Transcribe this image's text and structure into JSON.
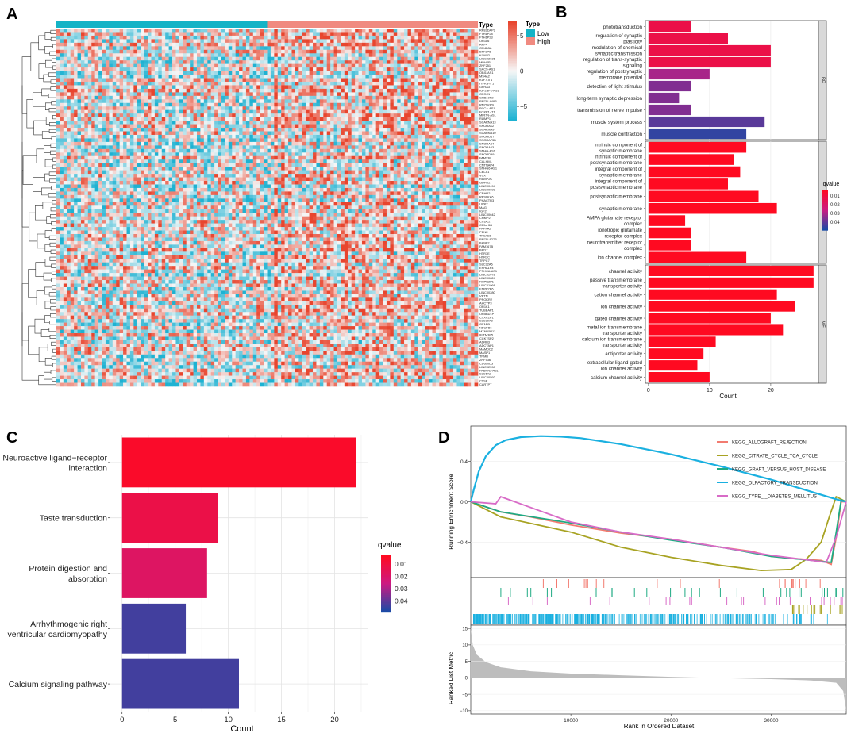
{
  "colors": {
    "heat_low": "#1eb2d2",
    "heat_mid": "#f6f6f6",
    "heat_high": "#e8452e",
    "type_low": "#14b3c6",
    "type_high": "#f08a80",
    "q_low": "#ff0a21",
    "q_mid": "#cc1a82",
    "q_high": "#1a4aa6",
    "gsea": [
      "#f27b70",
      "#a8a323",
      "#1faa83",
      "#1ab0e0",
      "#d86bc7"
    ],
    "metric_fill": "#bdbdbd",
    "panel_bg": "#ebebeb"
  },
  "panels": {
    "a": "A",
    "b": "B",
    "c": "C",
    "d": "D"
  },
  "chart_data": [
    {
      "type": "heatmap",
      "panel": "A",
      "genes": [
        "RP82DAP2",
        "FTH1P28",
        "FTH1P23",
        "OR1L6",
        "ARF4",
        "OR4B3A",
        "BTF3P6",
        "KCNV2",
        "LINC02636",
        "MDH2P",
        "ZNF251",
        "SACS-AS1",
        "OBI1-AS1",
        "MS4A2",
        "KLF7-IT1",
        "ITPKB-IT1",
        "GFRA3",
        "IGF2BP2-AS1",
        "OFCC1",
        "GRB10P2",
        "RN7SL448P",
        "RN7SKP9",
        "PCCA-AS1",
        "FOXP1-IT1",
        "MIR7N-AS1",
        "RLIMP1",
        "SCARNA13",
        "SNORA12",
        "SCARNA9",
        "SCARNA10",
        "SNORD17",
        "SNORA73B",
        "SNORA54",
        "SNORA63",
        "SNHG-AS1",
        "SNORD99",
        "FAM23B",
        "CALHM1",
        "CNTNAP4",
        "SNHG6-AS1",
        "CELA1",
        "VCX",
        "RAMP2C",
        "GDPD2",
        "LINC00494",
        "LINC00698",
        "CRHR2",
        "RPS6KA6",
        "PHACTR3",
        "LIPK2",
        "MAG",
        "IGF2",
        "LINC00642",
        "CHMP2",
        "CCDC27",
        "C19orf66",
        "PAPPA2",
        "PENK",
        "TPSAB1",
        "RN7SL827P",
        "BANF2",
        "FAM167B",
        "BRDT",
        "HTR3E",
        "HTR3C",
        "TRPC7",
        "SLC22A6",
        "EPHA1P4",
        "PRKCA-AS1",
        "LINC02078",
        "LINC00824",
        "RHPN2P1",
        "LINC01968",
        "ENPP7P6",
        "LINC00280",
        "VRTN",
        "PROKR2",
        "AHCYP3",
        "OR1K1",
        "TUBBAP1",
        "OR5BD1P",
        "CXXC1P1",
        "SLC30A8",
        "GP1BB",
        "NDUFB6",
        "MTND5P12",
        "IFITM3P5",
        "CCK7SP2",
        "ADRB3",
        "ADCYAP1",
        "MAMDC2",
        "MASP1",
        "TNMD",
        "ZNF536",
        "CD300LG",
        "LINC02598",
        "PABPN1-AS1",
        "SLC6A2",
        "LINC00592",
        "CTSE",
        "CARTPT"
      ],
      "type_legend_title": "Type",
      "type_annotation_label": "Type",
      "types": [
        "Low",
        "High"
      ],
      "low_fraction": 0.5,
      "colorbar_ticks": [
        5,
        0,
        -5
      ],
      "value_range": [
        -7,
        7
      ]
    },
    {
      "type": "bar",
      "panel": "B",
      "orientation": "horizontal",
      "xlabel": "Count",
      "xticks": [
        0,
        10,
        20
      ],
      "xlim": [
        -0.5,
        27.8
      ],
      "legend_title": "qvalue",
      "legend_ticks": [
        "0.01",
        "0.02",
        "0.03",
        "0.04"
      ],
      "groups": [
        {
          "label": "BP",
          "items": [
            {
              "lines": [
                "phototransduction"
              ],
              "count": 7,
              "q": 0.012
            },
            {
              "lines": [
                "regulation of synaptic",
                "plasticity"
              ],
              "count": 13,
              "q": 0.012
            },
            {
              "lines": [
                "modulation of chemical",
                "synaptic transmission"
              ],
              "count": 20,
              "q": 0.012
            },
            {
              "lines": [
                "regulation of trans-synaptic",
                "signaling"
              ],
              "count": 20,
              "q": 0.012
            },
            {
              "lines": [
                "regulation of postsynaptic",
                "membrane potential"
              ],
              "count": 10,
              "q": 0.03
            },
            {
              "lines": [
                "detection of light stimulus"
              ],
              "count": 7,
              "q": 0.035
            },
            {
              "lines": [
                "long-term synaptic depression"
              ],
              "count": 5,
              "q": 0.035
            },
            {
              "lines": [
                "transmission of nerve impulse"
              ],
              "count": 7,
              "q": 0.035
            },
            {
              "lines": [
                "muscle system process"
              ],
              "count": 19,
              "q": 0.04
            },
            {
              "lines": [
                "muscle contraction"
              ],
              "count": 16,
              "q": 0.045
            }
          ]
        },
        {
          "label": "CC",
          "items": [
            {
              "lines": [
                "intrinsic component of",
                "synaptic membrane"
              ],
              "count": 16,
              "q": 0.003
            },
            {
              "lines": [
                "intrinsic component of",
                "postsynaptic membrane"
              ],
              "count": 14,
              "q": 0.003
            },
            {
              "lines": [
                "integral component of",
                "synaptic membrane"
              ],
              "count": 15,
              "q": 0.003
            },
            {
              "lines": [
                "integral component of",
                "postsynaptic membrane"
              ],
              "count": 13,
              "q": 0.003
            },
            {
              "lines": [
                "postsynaptic membrane"
              ],
              "count": 18,
              "q": 0.003
            },
            {
              "lines": [
                "synaptic membrane"
              ],
              "count": 21,
              "q": 0.003
            },
            {
              "lines": [
                "AMPA glutamate receptor",
                "complex"
              ],
              "count": 6,
              "q": 0.003
            },
            {
              "lines": [
                "ionotropic glutamate",
                "receptor complex"
              ],
              "count": 7,
              "q": 0.003
            },
            {
              "lines": [
                "neurotransmitter receptor",
                "complex"
              ],
              "count": 7,
              "q": 0.003
            },
            {
              "lines": [
                "ion channel complex"
              ],
              "count": 16,
              "q": 0.003
            }
          ]
        },
        {
          "label": "MF",
          "items": [
            {
              "lines": [
                "channel activity"
              ],
              "count": 27,
              "q": 0.003
            },
            {
              "lines": [
                "passive transmembrane",
                "transporter activity"
              ],
              "count": 27,
              "q": 0.003
            },
            {
              "lines": [
                "cation channel activity"
              ],
              "count": 21,
              "q": 0.003
            },
            {
              "lines": [
                "ion channel activity"
              ],
              "count": 24,
              "q": 0.003
            },
            {
              "lines": [
                "gated channel activity"
              ],
              "count": 20,
              "q": 0.003
            },
            {
              "lines": [
                "metal ion transmembrane",
                "transporter activity"
              ],
              "count": 22,
              "q": 0.003
            },
            {
              "lines": [
                "calcium ion transmembrane",
                "transporter activity"
              ],
              "count": 11,
              "q": 0.003
            },
            {
              "lines": [
                "antiporter activity"
              ],
              "count": 9,
              "q": 0.003
            },
            {
              "lines": [
                "extracellular ligand-gated",
                "ion channel activity"
              ],
              "count": 8,
              "q": 0.003
            },
            {
              "lines": [
                "calcium channel activity"
              ],
              "count": 10,
              "q": 0.003
            }
          ]
        }
      ]
    },
    {
      "type": "bar",
      "panel": "C",
      "orientation": "horizontal",
      "xlabel": "Count",
      "xticks": [
        0,
        5,
        10,
        15,
        20
      ],
      "xlim": [
        -1.1,
        23.1
      ],
      "legend_title": "qvalue",
      "legend_ticks": [
        "0.01",
        "0.02",
        "0.03",
        "0.04"
      ],
      "items": [
        {
          "lines": [
            "Neuroactive ligand−receptor",
            "interaction"
          ],
          "count": 22,
          "q": 0.005
        },
        {
          "lines": [
            "Taste transduction"
          ],
          "count": 9,
          "q": 0.012
        },
        {
          "lines": [
            "Protein digestion and",
            "absorption"
          ],
          "count": 8,
          "q": 0.018
        },
        {
          "lines": [
            "Arrhythmogenic right",
            "ventricular cardiomyopathy"
          ],
          "count": 6,
          "q": 0.043
        },
        {
          "lines": [
            "Calcium signaling pathway"
          ],
          "count": 11,
          "q": 0.043
        }
      ]
    },
    {
      "type": "line",
      "panel": "D",
      "ylabel_top": "Running Enrichment Score",
      "ylabel_bottom": "Ranked List Metric",
      "xlabel": "Rank in Ordered Dataset",
      "xlim": [
        0,
        37500
      ],
      "ylim_top": [
        -0.75,
        0.75
      ],
      "yticks_top": [
        "0.4",
        "0.0",
        "-0.4"
      ],
      "ylim_bottom": [
        -11,
        16
      ],
      "yticks_bottom": [
        "15",
        "10",
        "5",
        "0",
        "-5",
        "-10"
      ],
      "xticks": [
        "10000",
        "20000",
        "30000"
      ],
      "series": [
        {
          "name": "KEGG_ALLOGRAFT_REJECTION",
          "x": [
            0,
            3000,
            6000,
            10000,
            15000,
            20000,
            25000,
            28000,
            30000,
            32000,
            35000,
            36000,
            36500,
            37000,
            37500
          ],
          "y": [
            0,
            -0.1,
            -0.15,
            -0.23,
            -0.31,
            -0.37,
            -0.45,
            -0.49,
            -0.54,
            -0.56,
            -0.58,
            -0.62,
            -0.35,
            0.0,
            0.0
          ]
        },
        {
          "name": "KEGG_CITRATE_CYCLE_TCA_CYCLE",
          "x": [
            0,
            3000,
            10000,
            15000,
            20000,
            25000,
            29000,
            32000,
            33500,
            35000,
            35800,
            36500,
            37500
          ],
          "y": [
            0,
            -0.15,
            -0.3,
            -0.45,
            -0.55,
            -0.63,
            -0.68,
            -0.67,
            -0.57,
            -0.4,
            -0.15,
            0.05,
            0.0
          ]
        },
        {
          "name": "KEGG_GRAFT_VERSUS_HOST_DISEASE",
          "x": [
            0,
            3000,
            10000,
            15000,
            20000,
            25000,
            30000,
            33000,
            35000,
            36000,
            36500,
            37000,
            37500
          ],
          "y": [
            0,
            -0.1,
            -0.21,
            -0.3,
            -0.38,
            -0.45,
            -0.54,
            -0.57,
            -0.59,
            -0.6,
            -0.3,
            0.02,
            0.0
          ]
        },
        {
          "name": "KEGG_OLFACTORY_TRANSDUCTION",
          "x": [
            0,
            300,
            800,
            1500,
            2500,
            3500,
            5000,
            7000,
            9000,
            11000,
            15000,
            20000,
            25000,
            30000,
            34000,
            36000,
            37000,
            37500
          ],
          "y": [
            0,
            0.12,
            0.3,
            0.45,
            0.56,
            0.61,
            0.64,
            0.65,
            0.645,
            0.63,
            0.57,
            0.47,
            0.35,
            0.22,
            0.1,
            0.04,
            0.01,
            0.0
          ]
        },
        {
          "name": "KEGG_TYPE_I_DIABETES_MELLITUS",
          "x": [
            0,
            2500,
            3000,
            10000,
            15000,
            20000,
            25000,
            30000,
            34000,
            35500,
            36500,
            37500
          ],
          "y": [
            0,
            -0.02,
            0.05,
            -0.2,
            -0.3,
            -0.37,
            -0.45,
            -0.53,
            -0.58,
            -0.6,
            -0.35,
            0.0
          ]
        }
      ],
      "hits_range": [
        2500,
        37500
      ],
      "hit_density": {
        "ALLOGRAFT": 22,
        "CITRATE": 18,
        "GVHD": 30,
        "OLFACTORY": 420,
        "T1D": 26
      }
    }
  ]
}
